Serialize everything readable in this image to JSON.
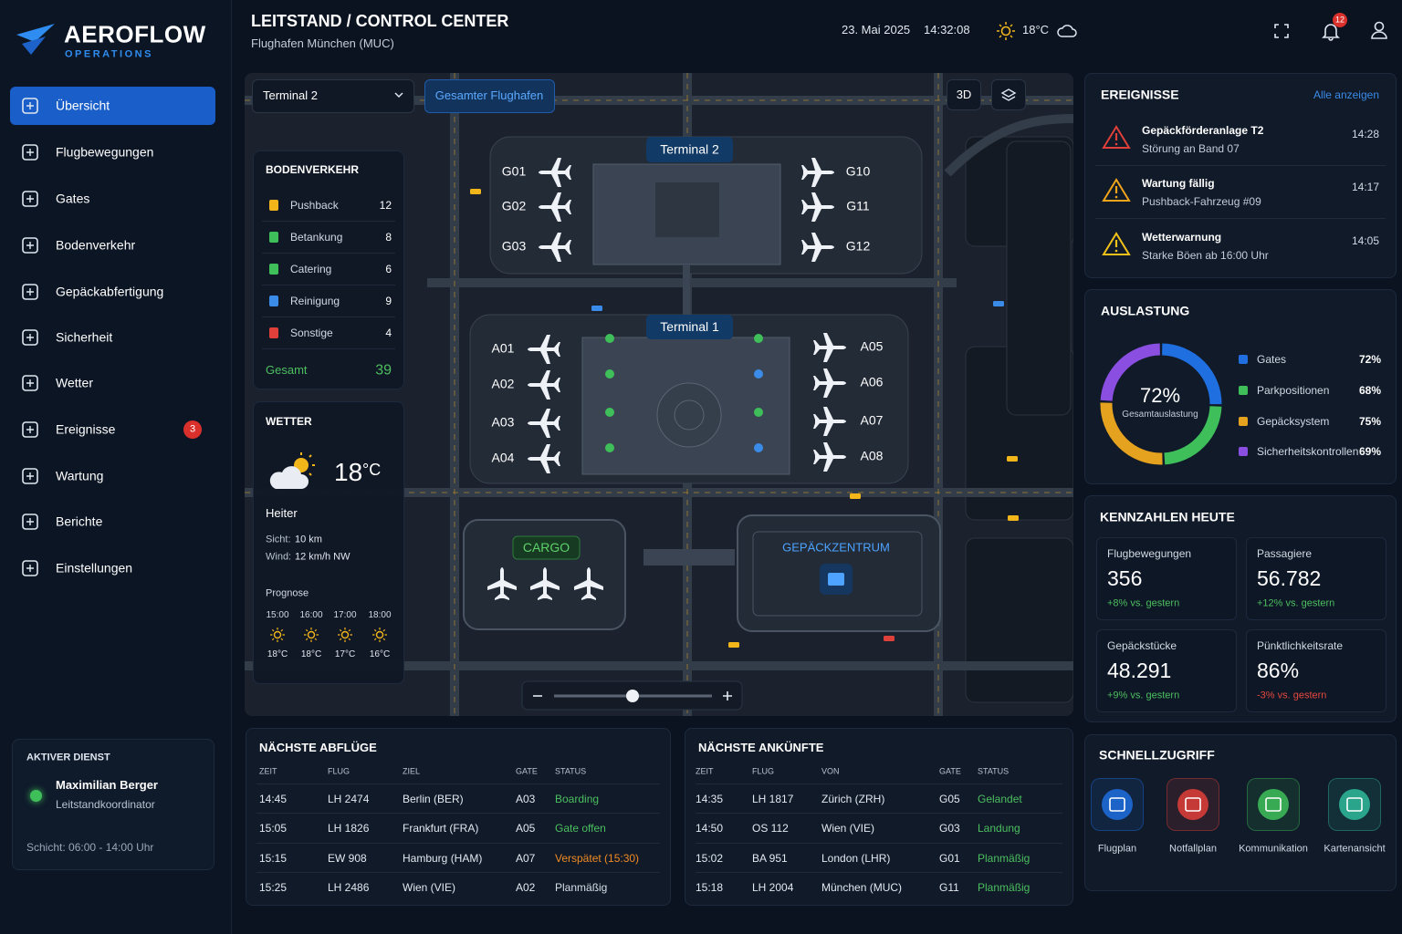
{
  "sidebar": {
    "brand": "AEROFLOW",
    "brand_sub": "OPERATIONS",
    "nav": [
      {
        "label": "Übersicht",
        "active": true
      },
      {
        "label": "Flugbewegungen"
      },
      {
        "label": "Gates"
      },
      {
        "label": "Bodenverkehr"
      },
      {
        "label": "Gepäckabfertigung"
      },
      {
        "label": "Sicherheit"
      },
      {
        "label": "Wetter"
      },
      {
        "label": "Ereignisse",
        "badge": "3"
      },
      {
        "label": "Wartung"
      },
      {
        "label": "Berichte"
      },
      {
        "label": "Einstellungen"
      }
    ],
    "duty": {
      "title": "AKTIVER DIENST",
      "name": "Maximilian Berger",
      "role": "Leitstandkoordinator",
      "shift": "Schicht: 06:00 - 14:00 Uhr"
    }
  },
  "header": {
    "title": "LEITSTAND / CONTROL CENTER",
    "subtitle": "Flughafen München (MUC)",
    "date": "23. Mai 2025",
    "time": "14:32:08",
    "temperature": "18°C",
    "notifications": "12"
  },
  "map": {
    "terminal_select": "Terminal 2",
    "scope": "Gesamter Flughafen",
    "view_3d": "3D",
    "terminal2": "Terminal 2",
    "terminal1": "Terminal 1",
    "t2_gates_left": [
      "G01",
      "G02",
      "G03"
    ],
    "t2_gates_right": [
      "G10",
      "G11",
      "G12"
    ],
    "t1_gates_left": [
      "A01",
      "A02",
      "A03",
      "A04"
    ],
    "t1_gates_right": [
      "A05",
      "A06",
      "A07",
      "A08"
    ],
    "cargo": "CARGO",
    "baggage_center": "GEPÄCKZENTRUM"
  },
  "ground_traffic": {
    "title": "BODENVERKEHR",
    "items": [
      {
        "label": "Pushback",
        "count": "12",
        "color": "#f2b61b"
      },
      {
        "label": "Betankung",
        "count": "8",
        "color": "#3fbf5a"
      },
      {
        "label": "Catering",
        "count": "6",
        "color": "#3fbf5a"
      },
      {
        "label": "Reinigung",
        "count": "9",
        "color": "#3b8be8"
      },
      {
        "label": "Sonstige",
        "count": "4",
        "color": "#e0403a"
      }
    ],
    "total_label": "Gesamt",
    "total": "39"
  },
  "weather": {
    "title": "WETTER",
    "temp": "18",
    "unit": "°C",
    "condition": "Heiter",
    "visibility_label": "Sicht:",
    "visibility": "10 km",
    "wind_label": "Wind:",
    "wind": "12 km/h NW",
    "forecast_title": "Prognose",
    "forecast": [
      {
        "time": "15:00",
        "temp": "18°C"
      },
      {
        "time": "16:00",
        "temp": "18°C"
      },
      {
        "time": "17:00",
        "temp": "17°C"
      },
      {
        "time": "18:00",
        "temp": "16°C"
      }
    ]
  },
  "events": {
    "title": "EREIGNISSE",
    "link": "Alle anzeigen",
    "items": [
      {
        "title": "Gepäckförderanlage T2",
        "detail": "Störung an Band 07",
        "time": "14:28",
        "color": "#e0403a"
      },
      {
        "title": "Wartung fällig",
        "detail": "Pushback-Fahrzeug #09",
        "time": "14:17",
        "color": "#f2a51b"
      },
      {
        "title": "Wetterwarnung",
        "detail": "Starke Böen ab 16:00 Uhr",
        "time": "14:05",
        "color": "#f2c21b"
      }
    ]
  },
  "utilization": {
    "title": "AUSLASTUNG",
    "total": "72%",
    "total_label": "Gesamtauslastung",
    "items": [
      {
        "label": "Gates",
        "value": 72,
        "value_label": "72%",
        "color": "#1f6fe0"
      },
      {
        "label": "Parkpositionen",
        "value": 68,
        "value_label": "68%",
        "color": "#3fbf5a"
      },
      {
        "label": "Gepäcksystem",
        "value": 75,
        "value_label": "75%",
        "color": "#e5a21e"
      },
      {
        "label": "Sicherheitskontrollen",
        "value": 69,
        "value_label": "69%",
        "color": "#8a4fe0"
      }
    ]
  },
  "kpis": {
    "title": "KENNZAHLEN HEUTE",
    "items": [
      {
        "label": "Flugbewegungen",
        "value": "356",
        "change": "+8% vs. gestern",
        "color": "#4cbf5f"
      },
      {
        "label": "Passagiere",
        "value": "56.782",
        "change": "+12% vs. gestern",
        "color": "#4cbf5f"
      },
      {
        "label": "Gepäckstücke",
        "value": "48.291",
        "change": "+9% vs. gestern",
        "color": "#4cbf5f"
      },
      {
        "label": "Pünktlichkeitsrate",
        "value": "86%",
        "change": "-3% vs. gestern",
        "color": "#e5483f"
      }
    ]
  },
  "departures": {
    "title": "NÄCHSTE ABFLÜGE",
    "columns": [
      "ZEIT",
      "FLUG",
      "ZIEL",
      "GATE",
      "STATUS"
    ],
    "rows": [
      {
        "cells": [
          "14:45",
          "LH 2474",
          "Berlin (BER)",
          "A03",
          "Boarding"
        ],
        "status_color": "#4cbf5f"
      },
      {
        "cells": [
          "15:05",
          "LH 1826",
          "Frankfurt (FRA)",
          "A05",
          "Gate offen"
        ],
        "status_color": "#4cbf5f"
      },
      {
        "cells": [
          "15:15",
          "EW 908",
          "Hamburg (HAM)",
          "A07",
          "Verspätet (15:30)"
        ],
        "status_color": "#f08a24"
      },
      {
        "cells": [
          "15:25",
          "LH 2486",
          "Wien (VIE)",
          "A02",
          "Planmäßig"
        ],
        "status_color": "#d8dee8"
      }
    ]
  },
  "arrivals": {
    "title": "NÄCHSTE ANKÜNFTE",
    "columns": [
      "ZEIT",
      "FLUG",
      "VON",
      "GATE",
      "STATUS"
    ],
    "rows": [
      {
        "cells": [
          "14:35",
          "LH 1817",
          "Zürich (ZRH)",
          "G05",
          "Gelandet"
        ],
        "status_color": "#4cbf5f"
      },
      {
        "cells": [
          "14:50",
          "OS 112",
          "Wien (VIE)",
          "G03",
          "Landung"
        ],
        "status_color": "#4cbf5f"
      },
      {
        "cells": [
          "15:02",
          "BA 951",
          "London (LHR)",
          "G01",
          "Planmäßig"
        ],
        "status_color": "#4cbf5f"
      },
      {
        "cells": [
          "15:18",
          "LH 2004",
          "München (MUC)",
          "G11",
          "Planmäßig"
        ],
        "status_color": "#4cbf5f"
      }
    ]
  },
  "quick_access": {
    "title": "SCHNELLZUGRIFF",
    "items": [
      {
        "label": "Flugplan",
        "color": "#1f6fe0"
      },
      {
        "label": "Notfallplan",
        "color": "#e0403a"
      },
      {
        "label": "Kommunikation",
        "color": "#3fbf5a"
      },
      {
        "label": "Kartenansicht",
        "color": "#2fb89a"
      }
    ]
  }
}
